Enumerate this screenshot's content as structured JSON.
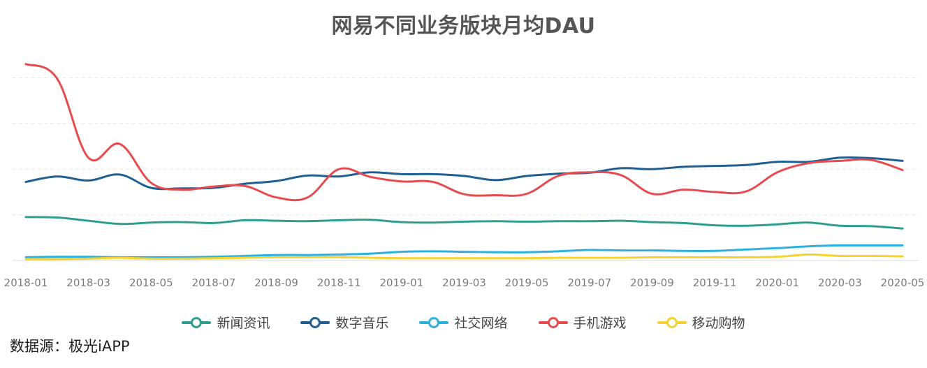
{
  "chart_data": {
    "type": "line",
    "title": "网易不同业务版块月均DAU",
    "xlabel": "",
    "ylabel": "",
    "y_tick_labels_shown": false,
    "grid": "horizontal-dashed",
    "legend_position": "bottom-center",
    "x": [
      "2018-01",
      "2018-02",
      "2018-03",
      "2018-04",
      "2018-05",
      "2018-06",
      "2018-07",
      "2018-08",
      "2018-09",
      "2018-10",
      "2018-11",
      "2018-12",
      "2019-01",
      "2019-02",
      "2019-03",
      "2019-04",
      "2019-05",
      "2019-06",
      "2019-07",
      "2019-08",
      "2019-09",
      "2019-10",
      "2019-11",
      "2019-12",
      "2020-01",
      "2020-02",
      "2020-03",
      "2020-04",
      "2020-05"
    ],
    "x_tick_labels": [
      "2018-01",
      "2018-03",
      "2018-05",
      "2018-07",
      "2018-09",
      "2018-11",
      "2019-01",
      "2019-03",
      "2019-05",
      "2019-07",
      "2019-09",
      "2019-11",
      "2020-01",
      "2020-03",
      "2020-05"
    ],
    "ylim": [
      0,
      4.3
    ],
    "series": [
      {
        "name": "新闻资讯",
        "color": "#2e9e8f",
        "values": [
          0.95,
          0.94,
          0.87,
          0.8,
          0.83,
          0.84,
          0.82,
          0.88,
          0.87,
          0.86,
          0.88,
          0.89,
          0.84,
          0.83,
          0.85,
          0.86,
          0.85,
          0.86,
          0.86,
          0.87,
          0.84,
          0.82,
          0.77,
          0.76,
          0.79,
          0.83,
          0.76,
          0.75,
          0.7
        ]
      },
      {
        "name": "数字音乐",
        "color": "#1f5f92",
        "values": [
          1.72,
          1.84,
          1.75,
          1.88,
          1.59,
          1.58,
          1.59,
          1.68,
          1.74,
          1.86,
          1.84,
          1.93,
          1.89,
          1.89,
          1.85,
          1.76,
          1.85,
          1.9,
          1.92,
          2.02,
          2.0,
          2.05,
          2.07,
          2.09,
          2.16,
          2.16,
          2.25,
          2.24,
          2.18
        ]
      },
      {
        "name": "社交网络",
        "color": "#2bb1e0",
        "values": [
          0.07,
          0.08,
          0.08,
          0.07,
          0.07,
          0.07,
          0.08,
          0.1,
          0.12,
          0.12,
          0.13,
          0.15,
          0.19,
          0.2,
          0.19,
          0.18,
          0.18,
          0.2,
          0.23,
          0.22,
          0.22,
          0.21,
          0.21,
          0.24,
          0.27,
          0.31,
          0.33,
          0.33,
          0.33
        ]
      },
      {
        "name": "手机游戏",
        "color": "#e84b4f",
        "values": [
          4.3,
          3.98,
          2.25,
          2.55,
          1.7,
          1.55,
          1.62,
          1.63,
          1.38,
          1.38,
          2.0,
          1.83,
          1.73,
          1.72,
          1.45,
          1.43,
          1.46,
          1.85,
          1.93,
          1.87,
          1.46,
          1.55,
          1.5,
          1.51,
          1.93,
          2.13,
          2.18,
          2.2,
          1.98
        ]
      },
      {
        "name": "移动购物",
        "color": "#f4d230",
        "values": [
          0.03,
          0.03,
          0.04,
          0.06,
          0.04,
          0.04,
          0.05,
          0.06,
          0.07,
          0.07,
          0.07,
          0.06,
          0.05,
          0.05,
          0.05,
          0.05,
          0.05,
          0.06,
          0.06,
          0.06,
          0.07,
          0.07,
          0.07,
          0.07,
          0.08,
          0.13,
          0.1,
          0.1,
          0.09
        ]
      }
    ]
  },
  "source": "数据源：极光iAPP"
}
